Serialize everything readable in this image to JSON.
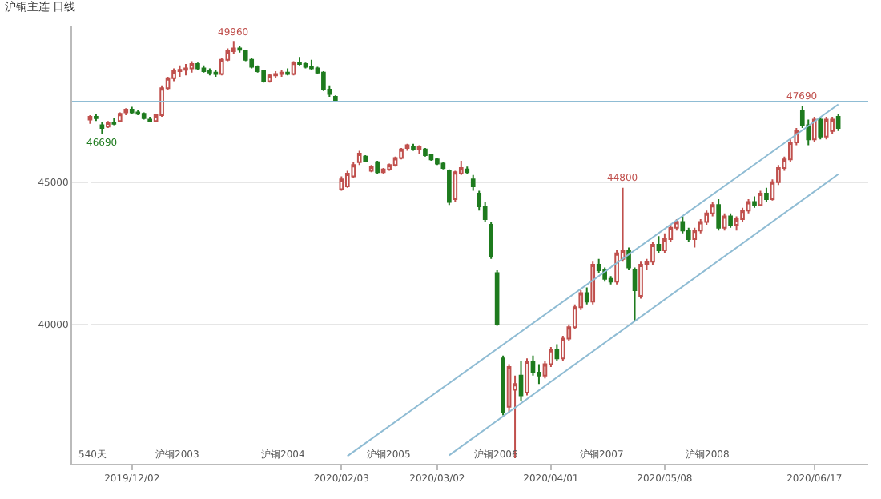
{
  "chart_data": {
    "type": "candlestick",
    "title": "沪铜主连 日线",
    "categories": [
      null,
      null,
      null,
      null,
      null,
      null,
      null,
      "2019/12/02",
      null,
      null,
      null,
      null,
      null,
      null,
      null,
      null,
      null,
      null,
      null,
      null,
      null,
      null,
      null,
      null,
      null,
      null,
      null,
      null,
      null,
      null,
      null,
      null,
      null,
      null,
      null,
      null,
      null,
      null,
      null,
      null,
      null,
      null,
      "2020/02/03",
      null,
      null,
      null,
      null,
      null,
      null,
      null,
      null,
      null,
      null,
      null,
      null,
      null,
      null,
      null,
      "2020/03/02",
      null,
      null,
      null,
      null,
      null,
      null,
      null,
      null,
      null,
      null,
      null,
      null,
      null,
      null,
      null,
      null,
      null,
      null,
      "2020/04/01",
      null,
      null,
      null,
      null,
      null,
      null,
      null,
      null,
      null,
      null,
      null,
      null,
      null,
      null,
      null,
      null,
      null,
      null,
      "2020/05/08",
      null,
      null,
      null,
      null,
      null,
      null,
      null,
      null,
      null,
      null,
      null,
      null,
      null,
      null,
      null,
      null,
      null,
      null,
      null,
      null,
      null,
      null,
      null,
      null,
      "2020/06/17",
      null,
      null,
      null,
      null
    ],
    "ohlc": [
      [
        47200,
        47350,
        47050,
        47300
      ],
      [
        47300,
        47400,
        47150,
        47250
      ],
      [
        47000,
        47100,
        46690,
        46900
      ],
      [
        46950,
        47150,
        46900,
        47100
      ],
      [
        47100,
        47250,
        47000,
        47050
      ],
      [
        47150,
        47450,
        47100,
        47400
      ],
      [
        47450,
        47600,
        47350,
        47550
      ],
      [
        47550,
        47650,
        47400,
        47450
      ],
      [
        47450,
        47550,
        47350,
        47400
      ],
      [
        47400,
        47450,
        47200,
        47250
      ],
      [
        47200,
        47300,
        47100,
        47150
      ],
      [
        47150,
        47400,
        47100,
        47350
      ],
      [
        47350,
        48400,
        47300,
        48300
      ],
      [
        48300,
        48700,
        48250,
        48650
      ],
      [
        48650,
        49000,
        48550,
        48900
      ],
      [
        48900,
        49100,
        48700,
        48950
      ],
      [
        48950,
        49150,
        48750,
        49000
      ],
      [
        49000,
        49250,
        48850,
        49150
      ],
      [
        49150,
        49200,
        48950,
        49000
      ],
      [
        49000,
        49100,
        48850,
        48900
      ],
      [
        48900,
        49000,
        48750,
        48850
      ],
      [
        48850,
        48950,
        48700,
        48800
      ],
      [
        48800,
        49350,
        48750,
        49300
      ],
      [
        49300,
        49700,
        49250,
        49600
      ],
      [
        49600,
        49960,
        49500,
        49700
      ],
      [
        49700,
        49800,
        49550,
        49650
      ],
      [
        49600,
        49650,
        49250,
        49300
      ],
      [
        49300,
        49350,
        49000,
        49050
      ],
      [
        49050,
        49100,
        48850,
        48900
      ],
      [
        48900,
        48950,
        48500,
        48550
      ],
      [
        48550,
        48800,
        48500,
        48750
      ],
      [
        48750,
        48900,
        48650,
        48800
      ],
      [
        48800,
        48950,
        48700,
        48850
      ],
      [
        48850,
        49000,
        48750,
        48800
      ],
      [
        48800,
        49250,
        48750,
        49200
      ],
      [
        49200,
        49400,
        49100,
        49150
      ],
      [
        49150,
        49200,
        49000,
        49050
      ],
      [
        49050,
        49300,
        48950,
        49000
      ],
      [
        49000,
        49050,
        48800,
        48850
      ],
      [
        48850,
        48900,
        48200,
        48250
      ],
      [
        48250,
        48400,
        48000,
        48100
      ],
      [
        48000,
        48050,
        47800,
        47850
      ],
      [
        44750,
        45200,
        44700,
        45100
      ],
      [
        44850,
        45400,
        44800,
        45300
      ],
      [
        45200,
        45700,
        45150,
        45600
      ],
      [
        45700,
        46100,
        45600,
        46000
      ],
      [
        45900,
        45950,
        45700,
        45750
      ],
      [
        45400,
        45600,
        45350,
        45550
      ],
      [
        45700,
        45750,
        45300,
        45350
      ],
      [
        45350,
        45500,
        45300,
        45450
      ],
      [
        45450,
        45650,
        45400,
        45600
      ],
      [
        45600,
        45900,
        45550,
        45850
      ],
      [
        45850,
        46200,
        45800,
        46150
      ],
      [
        46200,
        46350,
        46100,
        46300
      ],
      [
        46250,
        46350,
        46100,
        46150
      ],
      [
        46150,
        46300,
        46000,
        46250
      ],
      [
        46150,
        46200,
        45900,
        45950
      ],
      [
        45950,
        46000,
        45750,
        45800
      ],
      [
        45800,
        45850,
        45600,
        45650
      ],
      [
        45650,
        45700,
        45450,
        45500
      ],
      [
        45400,
        45450,
        44200,
        44300
      ],
      [
        44400,
        45400,
        44300,
        45350
      ],
      [
        45300,
        45750,
        45250,
        45500
      ],
      [
        45450,
        45550,
        45300,
        45350
      ],
      [
        45100,
        45250,
        44700,
        44850
      ],
      [
        44600,
        44700,
        44000,
        44150
      ],
      [
        44150,
        44300,
        43600,
        43700
      ],
      [
        43500,
        43600,
        42300,
        42400
      ],
      [
        41800,
        41900,
        39950,
        40000
      ],
      [
        38800,
        38900,
        36800,
        36900
      ],
      [
        37100,
        38600,
        36900,
        38500
      ],
      [
        37700,
        38200,
        35300,
        37900
      ],
      [
        38200,
        38700,
        37300,
        37500
      ],
      [
        37600,
        38800,
        37500,
        38700
      ],
      [
        38700,
        38900,
        38200,
        38300
      ],
      [
        38300,
        38600,
        37900,
        38200
      ],
      [
        38200,
        38700,
        38100,
        38600
      ],
      [
        38600,
        39200,
        38500,
        39100
      ],
      [
        39100,
        39300,
        38700,
        38800
      ],
      [
        38800,
        39600,
        38700,
        39500
      ],
      [
        39500,
        40000,
        39400,
        39900
      ],
      [
        39900,
        40700,
        39850,
        40600
      ],
      [
        40600,
        41200,
        40500,
        41100
      ],
      [
        41100,
        41300,
        40700,
        40800
      ],
      [
        40800,
        42200,
        40700,
        42100
      ],
      [
        42100,
        42300,
        41800,
        41900
      ],
      [
        41900,
        42000,
        41500,
        41600
      ],
      [
        41600,
        41700,
        41400,
        41500
      ],
      [
        41500,
        42600,
        41400,
        42500
      ],
      [
        42300,
        44800,
        42200,
        42600
      ],
      [
        42600,
        42700,
        41900,
        42000
      ],
      [
        41900,
        42000,
        40100,
        41200
      ],
      [
        41000,
        42200,
        40900,
        42100
      ],
      [
        42100,
        42300,
        41900,
        42200
      ],
      [
        42200,
        42900,
        42100,
        42800
      ],
      [
        42800,
        43100,
        42500,
        42600
      ],
      [
        42600,
        43200,
        42500,
        43000
      ],
      [
        43000,
        43500,
        42900,
        43400
      ],
      [
        43400,
        43700,
        43300,
        43600
      ],
      [
        43600,
        43800,
        43200,
        43300
      ],
      [
        43300,
        43400,
        42900,
        43000
      ],
      [
        43000,
        43400,
        42700,
        43300
      ],
      [
        43300,
        43700,
        43200,
        43600
      ],
      [
        43600,
        44000,
        43500,
        43900
      ],
      [
        43900,
        44300,
        43800,
        44200
      ],
      [
        44200,
        44400,
        43300,
        43400
      ],
      [
        43400,
        43900,
        43300,
        43800
      ],
      [
        43800,
        43900,
        43400,
        43500
      ],
      [
        43500,
        43800,
        43300,
        43700
      ],
      [
        43700,
        44100,
        43600,
        44000
      ],
      [
        44000,
        44400,
        43900,
        44300
      ],
      [
        44300,
        44500,
        44100,
        44200
      ],
      [
        44200,
        44700,
        44150,
        44600
      ],
      [
        44600,
        44800,
        44300,
        44400
      ],
      [
        44400,
        45100,
        44350,
        45000
      ],
      [
        45000,
        45600,
        44900,
        45500
      ],
      [
        45500,
        45900,
        45400,
        45800
      ],
      [
        45800,
        46500,
        45700,
        46400
      ],
      [
        46400,
        46900,
        46300,
        46800
      ],
      [
        47500,
        47690,
        46900,
        47000
      ],
      [
        47000,
        47200,
        46300,
        46500
      ],
      [
        46500,
        47300,
        46400,
        47200
      ],
      [
        47200,
        47300,
        46500,
        46600
      ],
      [
        46600,
        47300,
        46500,
        47200
      ],
      [
        46800,
        47300,
        46700,
        47200
      ],
      [
        47300,
        47400,
        46800,
        46900
      ]
    ],
    "series": [
      {
        "type": "line",
        "color": "#8fbcd4",
        "values": [
          null,
          null,
          null,
          null,
          null,
          null,
          null,
          null,
          null,
          null,
          null,
          null,
          null,
          null,
          null,
          null,
          null,
          null,
          null,
          null,
          null,
          null,
          null,
          null,
          null,
          null,
          null,
          null,
          null,
          null,
          null,
          null,
          null,
          null,
          null,
          null,
          null,
          null,
          null,
          null,
          null,
          null,
          null,
          35370,
          null,
          null,
          null,
          null,
          null,
          null,
          null,
          null,
          null,
          null,
          null,
          null,
          null,
          null,
          null,
          null,
          null,
          null,
          null,
          null,
          null,
          null,
          null,
          null,
          null,
          null,
          null,
          null,
          null,
          null,
          null,
          null,
          null,
          null,
          null,
          null,
          null,
          null,
          null,
          null,
          null,
          null,
          null,
          null,
          null,
          null,
          null,
          null,
          null,
          null,
          null,
          null,
          null,
          null,
          null,
          null,
          null,
          null,
          null,
          null,
          null,
          null,
          null,
          null,
          null,
          null,
          null,
          null,
          null,
          null,
          null,
          null,
          null,
          null,
          null,
          null,
          null,
          null,
          null,
          null,
          null,
          47730
        ]
      },
      {
        "type": "line",
        "color": "#8fbcd4",
        "values": [
          null,
          null,
          null,
          null,
          null,
          null,
          null,
          null,
          null,
          null,
          null,
          null,
          null,
          null,
          null,
          null,
          null,
          null,
          null,
          null,
          null,
          null,
          null,
          null,
          null,
          null,
          null,
          null,
          null,
          null,
          null,
          null,
          null,
          null,
          null,
          null,
          null,
          null,
          null,
          null,
          null,
          null,
          null,
          null,
          null,
          null,
          null,
          null,
          null,
          null,
          null,
          null,
          null,
          null,
          null,
          null,
          null,
          null,
          null,
          null,
          35400,
          null,
          null,
          null,
          null,
          null,
          null,
          null,
          null,
          null,
          null,
          null,
          null,
          null,
          null,
          null,
          null,
          null,
          null,
          null,
          null,
          null,
          null,
          null,
          null,
          null,
          null,
          null,
          null,
          null,
          null,
          null,
          null,
          null,
          null,
          null,
          null,
          null,
          null,
          null,
          null,
          null,
          null,
          null,
          null,
          null,
          null,
          null,
          null,
          null,
          null,
          null,
          null,
          null,
          null,
          null,
          null,
          null,
          null,
          null,
          null,
          null,
          null,
          null,
          null,
          45280
        ]
      }
    ],
    "ref_lines": [
      {
        "axis": "y",
        "value": 47830,
        "color": "#8fbcd4"
      }
    ],
    "ylim": [
      35100,
      50500
    ],
    "yticks": [
      40000,
      45000
    ],
    "grid": "y",
    "annotations": [
      {
        "text": "49960",
        "y": 49960
      },
      {
        "text": "46690",
        "y": 46690
      },
      {
        "text": "44800",
        "y": 44800
      },
      {
        "text": "47690",
        "y": 47690
      },
      "540天",
      "沪铜2003",
      "沪铜2004",
      "沪铜2005",
      "沪铜2006",
      "沪铜2007",
      "沪铜2008"
    ]
  }
}
